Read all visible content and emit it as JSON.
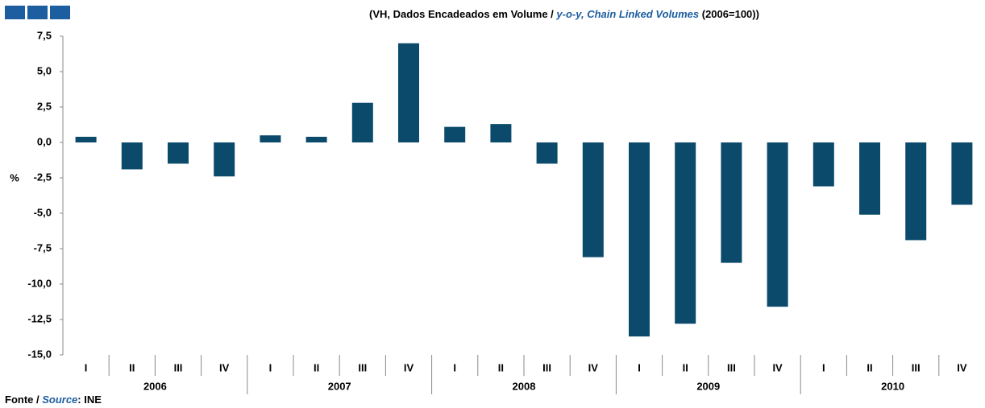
{
  "chart_data": {
    "type": "bar",
    "title": [
      "(VH, Dados Encadeados em Volume / ",
      "y-o-y, Chain Linked Volumes",
      " (2006=100))"
    ],
    "y_label": "%",
    "source": [
      "Fonte / ",
      "Source",
      ": INE"
    ],
    "categories": [
      "I",
      "II",
      "III",
      "IV",
      "I",
      "II",
      "III",
      "IV",
      "I",
      "II",
      "III",
      "IV",
      "I",
      "II",
      "III",
      "IV",
      "I",
      "II",
      "III",
      "IV"
    ],
    "groups": [
      "2006",
      "2007",
      "2008",
      "2009",
      "2010"
    ],
    "values": [
      0.4,
      -1.9,
      -1.5,
      -2.4,
      0.5,
      0.4,
      2.8,
      7.0,
      1.1,
      1.3,
      -1.5,
      -8.1,
      -13.7,
      -12.8,
      -8.5,
      -11.6,
      -3.1,
      -5.1,
      -6.9,
      -4.4
    ],
    "color": "#0b4a6b",
    "ylim": [
      -15,
      7.5
    ],
    "yticks": [
      {
        "value": 7.5,
        "label": "7,5"
      },
      {
        "value": 5,
        "label": "5,0"
      },
      {
        "value": 2.5,
        "label": "2,5"
      },
      {
        "value": 0,
        "label": "0,0"
      },
      {
        "value": -2.5,
        "label": "-2,5"
      },
      {
        "value": -5,
        "label": "-5,0"
      },
      {
        "value": -7.5,
        "label": "-7,5"
      },
      {
        "value": -10,
        "label": "-10,0"
      },
      {
        "value": -12.5,
        "label": "-12,5"
      },
      {
        "value": -15,
        "label": "-15,0"
      }
    ],
    "grid": false
  }
}
